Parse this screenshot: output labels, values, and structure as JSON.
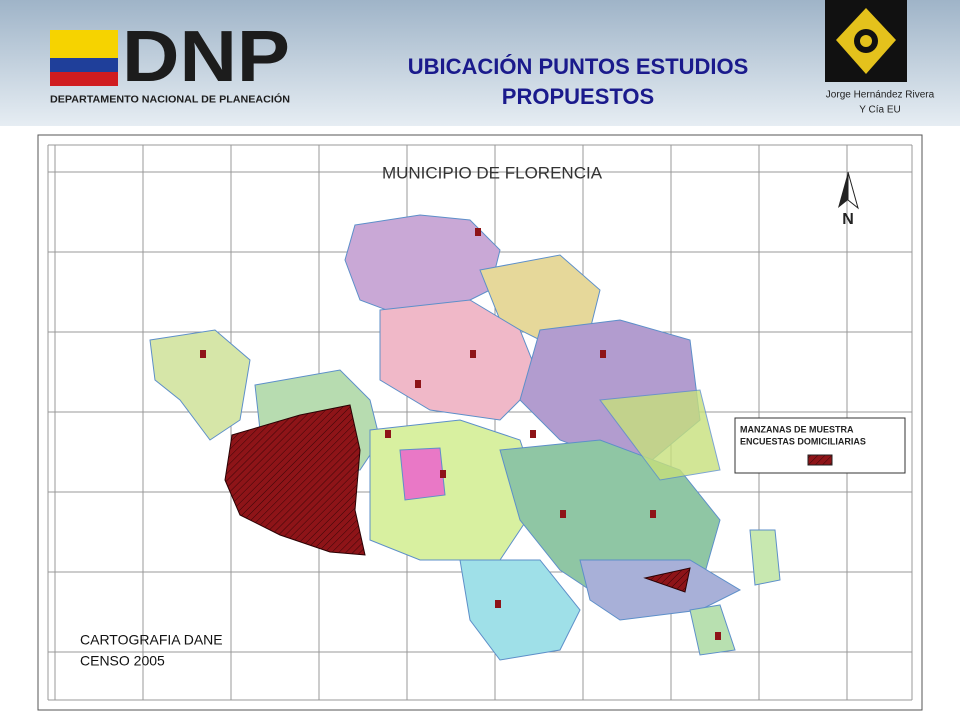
{
  "header": {
    "logo_text": "DNP",
    "logo_subtitle": "DEPARTAMENTO NACIONAL DE PLANEACIÓN",
    "title_lines": [
      "UBICACIÓN PUNTOS ESTUDIOS",
      "PROPUESTOS"
    ],
    "author_lines": [
      "Jorge Hernández Rivera",
      "Y Cía EU"
    ]
  },
  "map": {
    "title": "MUNICIPIO DE FLORENCIA",
    "north_label": "N",
    "legend_lines": [
      "MANZANAS DE MUESTRA",
      "ENCUESTAS DOMICILIARIAS"
    ],
    "source_lines": [
      "CARTOGRAFIA DANE",
      "CENSO 2005"
    ]
  }
}
